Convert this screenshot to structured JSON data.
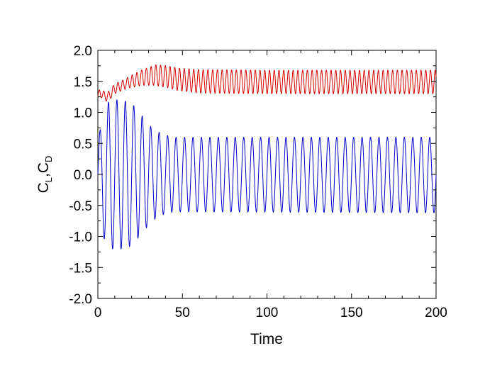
{
  "chart_data": {
    "type": "line",
    "xlabel": "Time",
    "ylabel": {
      "parts": [
        "C",
        "L",
        ",C",
        "D"
      ]
    },
    "xlim": [
      0,
      200
    ],
    "ylim": [
      -2.0,
      2.0
    ],
    "x_ticks": [
      "0",
      "50",
      "100",
      "150",
      "200"
    ],
    "y_ticks": [
      "2.0",
      "1.5",
      "1.0",
      "0.5",
      "0.0",
      "-0.5",
      "-1.0",
      "-1.5",
      "-2.0"
    ],
    "grid": false,
    "legend": "none",
    "series": [
      {
        "color": "#d40000",
        "mean_envelope": [
          [
            0,
            1.25
          ],
          [
            1,
            1.32
          ],
          [
            3,
            1.28
          ],
          [
            6,
            1.25
          ],
          [
            10,
            1.38
          ],
          [
            18,
            1.48
          ],
          [
            26,
            1.56
          ],
          [
            34,
            1.6
          ],
          [
            40,
            1.58
          ],
          [
            48,
            1.53
          ],
          [
            60,
            1.5
          ],
          [
            100,
            1.49
          ],
          [
            200,
            1.49
          ]
        ],
        "amplitude_envelope": [
          [
            0,
            0.05
          ],
          [
            5,
            0.08
          ],
          [
            15,
            0.08
          ],
          [
            25,
            0.12
          ],
          [
            35,
            0.17
          ],
          [
            45,
            0.18
          ],
          [
            60,
            0.19
          ],
          [
            200,
            0.19
          ]
        ],
        "period": 2.8
      },
      {
        "color": "#0000cc",
        "mean_envelope": [
          [
            0,
            0.0
          ],
          [
            200,
            -0.01
          ]
        ],
        "amplitude_envelope": [
          [
            0,
            0.5
          ],
          [
            3,
            1.0
          ],
          [
            7,
            1.2
          ],
          [
            14,
            1.2
          ],
          [
            20,
            1.15
          ],
          [
            26,
            0.95
          ],
          [
            32,
            0.75
          ],
          [
            38,
            0.65
          ],
          [
            45,
            0.6
          ],
          [
            200,
            0.61
          ]
        ],
        "period": 5.0
      }
    ]
  }
}
